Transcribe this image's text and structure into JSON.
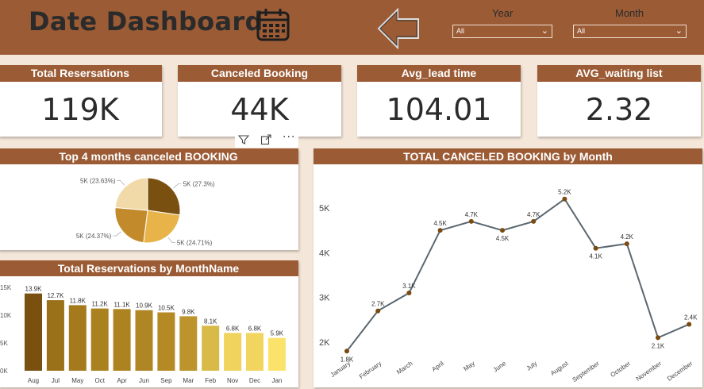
{
  "header": {
    "title": "Date Dashboard",
    "year_label": "Year",
    "month_label": "Month",
    "year_value": "All",
    "month_value": "All"
  },
  "kpis": [
    {
      "label": "Total Resersations",
      "value": "119K"
    },
    {
      "label": "Canceled Booking",
      "value": "44K"
    },
    {
      "label": "Avg_lead time",
      "value": "104.01"
    },
    {
      "label": "AVG_waiting list",
      "value": "2.32"
    }
  ],
  "colors": {
    "header": "#9b5b35",
    "background": "#f4e7d9",
    "line": "#5a6770",
    "marker": "#7a4a10"
  },
  "pie": {
    "title": "Top 4 months canceled BOOKING",
    "chart_data": {
      "type": "pie",
      "slices": [
        {
          "label": "5K (27.3%)",
          "percent": 27.3,
          "color": "#7a5010"
        },
        {
          "label": "5K (24.71%)",
          "percent": 24.71,
          "color": "#e8b44a"
        },
        {
          "label": "5K (24.37%)",
          "percent": 24.37,
          "color": "#c28a2a"
        },
        {
          "label": "5K (23.63%)",
          "percent": 23.63,
          "color": "#f2d9a8"
        }
      ]
    }
  },
  "bar": {
    "title": "Total Reservations by MonthName",
    "chart_data": {
      "type": "bar",
      "categories": [
        "Aug",
        "Jul",
        "May",
        "Oct",
        "Apr",
        "Jun",
        "Sep",
        "Mar",
        "Feb",
        "Nov",
        "Dec",
        "Jan"
      ],
      "values": [
        13.9,
        12.7,
        11.8,
        11.2,
        11.1,
        10.9,
        10.5,
        9.8,
        8.1,
        6.8,
        6.8,
        5.9
      ],
      "data_labels": [
        "13.9K",
        "12.7K",
        "11.8K",
        "11.2K",
        "11.1K",
        "10.9K",
        "10.5K",
        "9.8K",
        "8.1K",
        "6.8K",
        "6.8K",
        "5.9K"
      ],
      "colors": [
        "#7a5010",
        "#9a7019",
        "#a47a1d",
        "#ab8120",
        "#ad8221",
        "#b08523",
        "#b58a25",
        "#bd942c",
        "#d8ba48",
        "#f0d35d",
        "#f1d55f",
        "#fbe36b"
      ],
      "yticks": [
        "15K",
        "10K",
        "5K",
        "0K"
      ],
      "ytick_values": [
        15,
        10,
        5,
        0
      ],
      "ylim": [
        0,
        15
      ]
    }
  },
  "line": {
    "title": "TOTAL CANCELED BOOKING by Month",
    "chart_data": {
      "type": "line",
      "categories": [
        "January",
        "February",
        "March",
        "April",
        "May",
        "June",
        "July",
        "August",
        "September",
        "October",
        "November",
        "December"
      ],
      "values": [
        1.8,
        2.7,
        3.1,
        4.5,
        4.7,
        4.5,
        4.7,
        5.2,
        4.1,
        4.2,
        2.1,
        2.4
      ],
      "data_labels": [
        "1.8K",
        "2.7K",
        "3.1K",
        "4.5K",
        "4.7K",
        "4.5K",
        "4.7K",
        "5.2K",
        "4.1K",
        "4.2K",
        "2.1K",
        "2.4K"
      ],
      "yticks": [
        "5K",
        "4K",
        "3K",
        "2K"
      ],
      "ytick_values": [
        5,
        4,
        3,
        2
      ]
    }
  }
}
